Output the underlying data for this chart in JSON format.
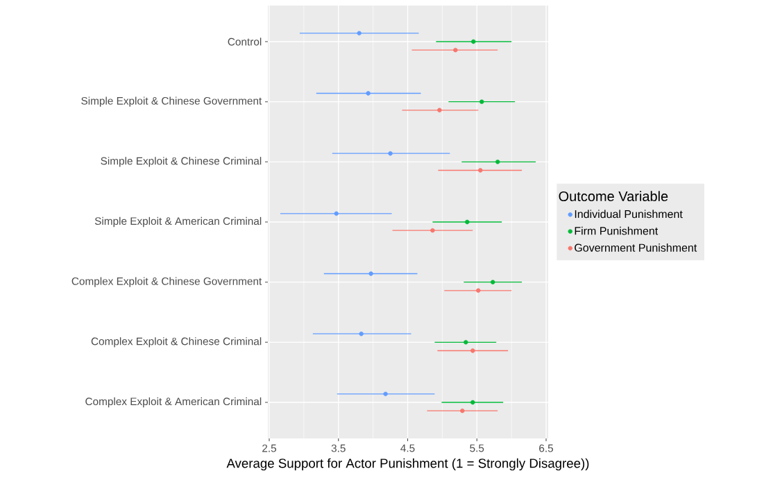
{
  "chart_data": {
    "type": "scatter",
    "orientation": "horizontal",
    "xlabel": "Average Support for Actor Punishment (1 = Strongly Disagree))",
    "legend_title": "Outcome Variable",
    "categories": [
      "Control",
      "Simple Exploit & Chinese Government",
      "Simple Exploit & Chinese Criminal",
      "Simple Exploit & American Criminal",
      "Complex Exploit & Chinese Government",
      "Complex Exploit & Chinese Criminal",
      "Complex Exploit & American Criminal"
    ],
    "series": [
      {
        "name": "Individual Punishment",
        "color": "#619cff",
        "values": [
          3.8,
          3.93,
          4.25,
          3.47,
          3.97,
          3.83,
          4.18
        ],
        "errors": [
          [
            2.94,
            4.66
          ],
          [
            3.18,
            4.69
          ],
          [
            3.41,
            5.11
          ],
          [
            2.66,
            4.27
          ],
          [
            3.29,
            4.64
          ],
          [
            3.13,
            4.55
          ],
          [
            3.48,
            4.89
          ]
        ]
      },
      {
        "name": "Firm Punishment",
        "color": "#00ba38",
        "values": [
          5.45,
          5.57,
          5.8,
          5.36,
          5.73,
          5.34,
          5.44
        ],
        "errors": [
          [
            4.91,
            6.0
          ],
          [
            5.09,
            6.05
          ],
          [
            5.28,
            6.35
          ],
          [
            4.86,
            5.86
          ],
          [
            5.31,
            6.15
          ],
          [
            4.89,
            5.78
          ],
          [
            4.99,
            5.88
          ]
        ]
      },
      {
        "name": "Government Punishment",
        "color": "#f8766d",
        "values": [
          5.19,
          4.96,
          5.55,
          4.86,
          5.52,
          5.44,
          5.29
        ],
        "errors": [
          [
            4.56,
            5.8
          ],
          [
            4.42,
            5.52
          ],
          [
            4.94,
            6.15
          ],
          [
            4.28,
            5.44
          ],
          [
            5.03,
            6.0
          ],
          [
            4.93,
            5.95
          ],
          [
            4.78,
            5.8
          ]
        ]
      }
    ],
    "xlim": [
      2.48,
      6.53
    ],
    "xticks": [
      2.5,
      3.5,
      4.5,
      5.5,
      6.5
    ],
    "grid": true,
    "legend": "right"
  }
}
